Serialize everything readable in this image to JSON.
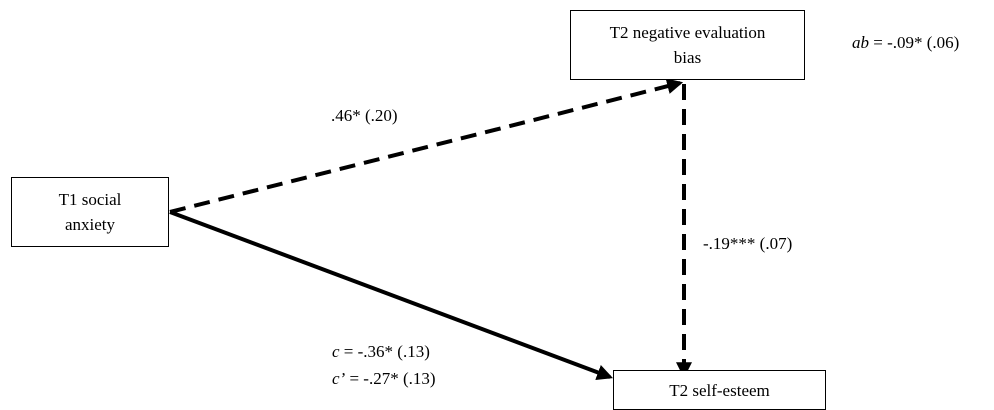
{
  "nodes": {
    "t1_social_anxiety": {
      "line1": "T1 social",
      "line2": "anxiety"
    },
    "t2_negative_bias": {
      "line1": "T2 negative evaluation",
      "line2": "bias"
    },
    "t2_self_esteem": {
      "line1": "T2 self-esteem"
    }
  },
  "paths": {
    "a_path": ".46* (.20)",
    "b_path": "-.19*** (.07)",
    "indirect": {
      "symbol": "ab",
      "value": " = -.09* (.06)"
    },
    "total": {
      "symbol": "c",
      "value": " = -.36* (.13)"
    },
    "direct": {
      "symbol": "c’",
      "value": " = -.27* (.13)"
    }
  }
}
